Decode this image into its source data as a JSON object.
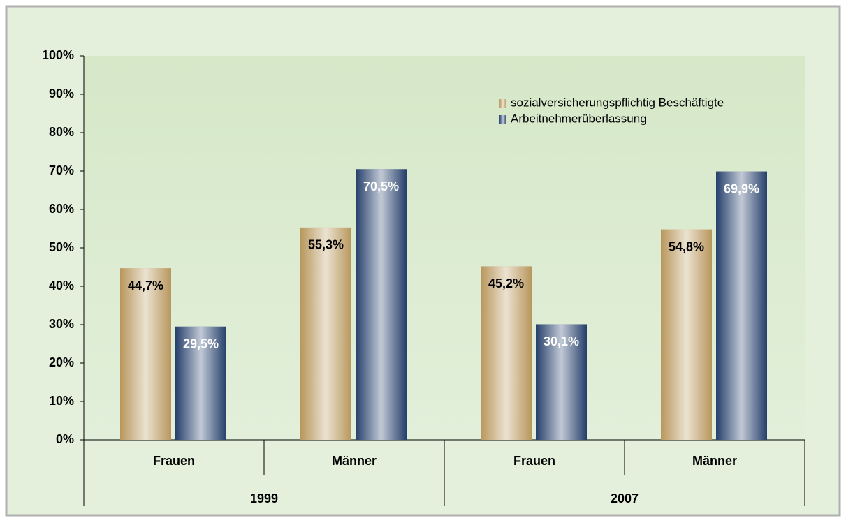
{
  "chart_data": {
    "type": "bar",
    "categories": [
      "Frauen",
      "Männer",
      "Frauen",
      "Männer"
    ],
    "groups": [
      "1999",
      "2007"
    ],
    "series": [
      {
        "name": "sozialversicherungspflichtig Beschäftigte",
        "color": "#b8975c",
        "label_color": "#000000",
        "values": [
          44.7,
          55.3,
          45.2,
          54.8
        ],
        "value_labels": [
          "44,7%",
          "55,3%",
          "45,2%",
          "54,8%"
        ]
      },
      {
        "name": "Arbeitnehmerüberlassung",
        "color": "#253f6b",
        "label_color": "#ffffff",
        "values": [
          29.5,
          70.5,
          30.1,
          69.9
        ],
        "value_labels": [
          "29,5%",
          "70,5%",
          "30,1%",
          "69,9%"
        ]
      }
    ],
    "ylim": [
      0,
      100
    ],
    "yticks": [
      {
        "value": 0,
        "label": "0%"
      },
      {
        "value": 10,
        "label": "10%"
      },
      {
        "value": 20,
        "label": "20%"
      },
      {
        "value": 30,
        "label": "30%"
      },
      {
        "value": 40,
        "label": "40%"
      },
      {
        "value": 50,
        "label": "50%"
      },
      {
        "value": 60,
        "label": "60%"
      },
      {
        "value": 70,
        "label": "70%"
      },
      {
        "value": 80,
        "label": "80%"
      },
      {
        "value": 90,
        "label": "90%"
      },
      {
        "value": 100,
        "label": "100%"
      }
    ],
    "legend": "upper right"
  }
}
